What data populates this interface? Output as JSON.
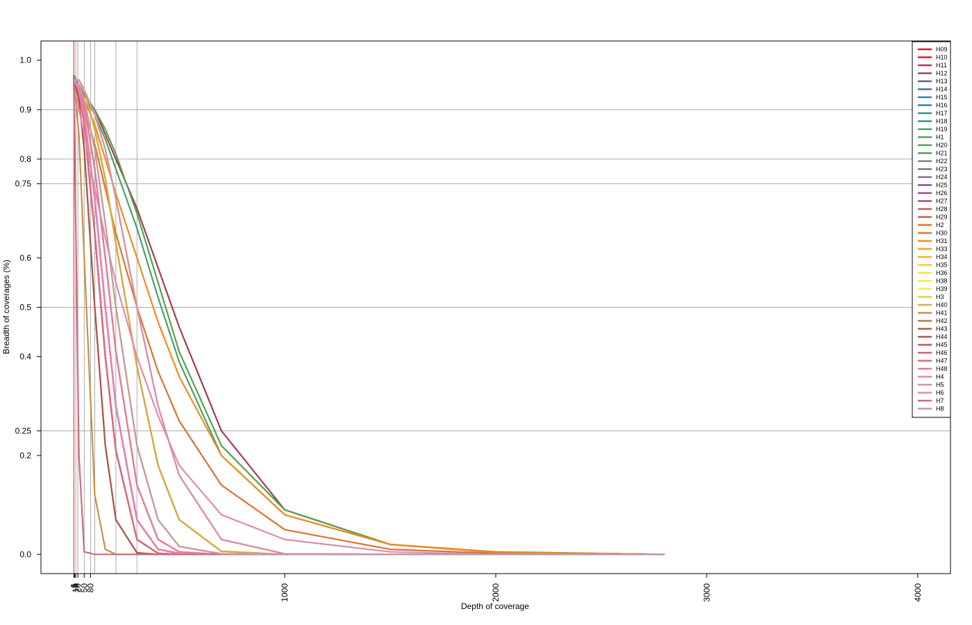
{
  "chart_data": {
    "type": "line",
    "x_label": "Depth of coverage",
    "y_label": "Breadth of coverages (%)",
    "x": [
      0,
      25,
      50,
      100,
      150,
      200,
      300,
      400,
      500,
      700,
      1000,
      1500,
      2000,
      2800
    ],
    "xlim": [
      -155,
      4155
    ],
    "ylim": [
      -0.039,
      1.039
    ],
    "xticks": [
      1,
      5,
      10,
      20,
      50,
      80,
      1000,
      2000,
      3000,
      4000
    ],
    "yticks": [
      {
        "value": 0,
        "label": "0.0"
      },
      0.2,
      0.25,
      0.4,
      0.5,
      0.6,
      0.75,
      0.8,
      0.9,
      {
        "value": 1,
        "label": "1.0"
      }
    ],
    "hlines": [
      0.25,
      0.5,
      0.75,
      0.8,
      0.9
    ],
    "vlines": [
      1,
      10,
      20,
      50,
      80,
      100,
      200,
      300
    ],
    "vline_colors": [
      "#cc3333",
      "#aaaaaa",
      "#aaaaaa",
      "#aaaaaa",
      "#aaaaaa",
      "#aaaaaa",
      "#aaaaaa",
      "#aaaaaa"
    ],
    "legend": "top-right",
    "series": [
      {
        "name": "H09",
        "color": "#cc2229",
        "values": [
          0.96,
          0.94,
          0.87,
          0.65,
          0.4,
          0.21,
          0.03,
          0.002,
          0,
          0,
          0,
          0,
          0,
          0
        ]
      },
      {
        "name": "H10",
        "color": "#c0283a",
        "values": [
          0.96,
          0.94,
          0.89,
          0.72,
          0.5,
          0.3,
          0.07,
          0.01,
          0.002,
          0,
          0,
          0,
          0,
          0
        ]
      },
      {
        "name": "H11",
        "color": "#a63a50",
        "values": [
          0.97,
          0.95,
          0.93,
          0.9,
          0.85,
          0.8,
          0.7,
          0.58,
          0.46,
          0.25,
          0.09,
          0.02,
          0.004,
          0
        ]
      },
      {
        "name": "H12",
        "color": "#8b4d6a",
        "values": [
          0.96,
          0.95,
          0.94,
          0.86,
          0.76,
          0.63,
          0.38,
          0.18,
          0.07,
          0.006,
          0,
          0,
          0,
          0
        ]
      },
      {
        "name": "H13",
        "color": "#6e5a8a",
        "values": [
          0.96,
          0.95,
          0.92,
          0.82,
          0.67,
          0.5,
          0.22,
          0.07,
          0.016,
          0.001,
          0,
          0,
          0,
          0
        ]
      },
      {
        "name": "H14",
        "color": "#4f6ea3",
        "values": [
          0.96,
          0.95,
          0.91,
          0.78,
          0.6,
          0.41,
          0.14,
          0.03,
          0.005,
          0,
          0,
          0,
          0,
          0
        ]
      },
      {
        "name": "H15",
        "color": "#3a7fb0",
        "values": [
          0.96,
          0.95,
          0.91,
          0.78,
          0.6,
          0.41,
          0.14,
          0.03,
          0.005,
          0,
          0,
          0,
          0,
          0
        ]
      },
      {
        "name": "H16",
        "color": "#2f86a0",
        "values": [
          0.96,
          0.94,
          0.89,
          0.72,
          0.5,
          0.3,
          0.07,
          0.01,
          0.002,
          0,
          0,
          0,
          0,
          0
        ]
      },
      {
        "name": "H17",
        "color": "#358f8a",
        "values": [
          0.96,
          0.94,
          0.87,
          0.65,
          0.4,
          0.21,
          0.03,
          0.002,
          0,
          0,
          0,
          0,
          0,
          0
        ]
      },
      {
        "name": "H18",
        "color": "#3d9478",
        "values": [
          0.96,
          0.94,
          0.89,
          0.72,
          0.5,
          0.3,
          0.07,
          0.01,
          0.002,
          0,
          0,
          0,
          0,
          0
        ]
      },
      {
        "name": "H19",
        "color": "#47a06b",
        "values": [
          0.97,
          0.95,
          0.93,
          0.89,
          0.84,
          0.78,
          0.66,
          0.52,
          0.39,
          0.2,
          0.08,
          0.02,
          0.004,
          0
        ]
      },
      {
        "name": "H1",
        "color": "#4ea05f",
        "values": [
          0.96,
          0.94,
          0.89,
          0.72,
          0.5,
          0.3,
          0.07,
          0.01,
          0.002,
          0,
          0,
          0,
          0,
          0
        ]
      },
      {
        "name": "H20",
        "color": "#55a052",
        "values": [
          0.97,
          0.95,
          0.93,
          0.9,
          0.86,
          0.81,
          0.69,
          0.55,
          0.41,
          0.22,
          0.09,
          0.02,
          0.005,
          0
        ]
      },
      {
        "name": "H21",
        "color": "#5e9656",
        "values": [
          0.96,
          0.94,
          0.87,
          0.65,
          0.4,
          0.21,
          0.03,
          0.002,
          0,
          0,
          0,
          0,
          0,
          0
        ]
      },
      {
        "name": "H22",
        "color": "#6f8a6a",
        "values": [
          0.96,
          0.92,
          0.82,
          0.5,
          0.22,
          0.07,
          0.003,
          0,
          0,
          0,
          0,
          0,
          0,
          0
        ]
      },
      {
        "name": "H23",
        "color": "#787878",
        "values": [
          0.96,
          0.94,
          0.89,
          0.72,
          0.5,
          0.3,
          0.07,
          0.01,
          0.002,
          0,
          0,
          0,
          0,
          0
        ]
      },
      {
        "name": "H24",
        "color": "#8a6a90",
        "values": [
          0.96,
          0.96,
          0.94,
          0.89,
          0.82,
          0.72,
          0.5,
          0.3,
          0.16,
          0.03,
          0.001,
          0,
          0,
          0
        ]
      },
      {
        "name": "H25",
        "color": "#8c4f9a",
        "values": [
          0.96,
          0.95,
          0.94,
          0.86,
          0.76,
          0.63,
          0.38,
          0.18,
          0.07,
          0.006,
          0,
          0,
          0,
          0
        ]
      },
      {
        "name": "H26",
        "color": "#9e4a8a",
        "values": [
          0.96,
          0.94,
          0.89,
          0.72,
          0.5,
          0.3,
          0.07,
          0.01,
          0.002,
          0,
          0,
          0,
          0,
          0
        ]
      },
      {
        "name": "H27",
        "color": "#b04a70",
        "values": [
          0.96,
          0.94,
          0.87,
          0.65,
          0.4,
          0.21,
          0.03,
          0.002,
          0,
          0,
          0,
          0,
          0,
          0
        ]
      },
      {
        "name": "H28",
        "color": "#c05a5a",
        "values": [
          0.96,
          0.94,
          0.89,
          0.72,
          0.5,
          0.3,
          0.07,
          0.01,
          0.002,
          0,
          0,
          0,
          0,
          0
        ]
      },
      {
        "name": "H29",
        "color": "#cc6040",
        "values": [
          0.96,
          0.94,
          0.87,
          0.65,
          0.4,
          0.21,
          0.03,
          0.002,
          0,
          0,
          0,
          0,
          0,
          0
        ]
      },
      {
        "name": "H2",
        "color": "#e0702a",
        "values": [
          0.96,
          0.93,
          0.9,
          0.83,
          0.74,
          0.65,
          0.5,
          0.37,
          0.27,
          0.14,
          0.05,
          0.01,
          0.002,
          0
        ]
      },
      {
        "name": "H30",
        "color": "#eb7a20",
        "values": [
          0.96,
          0.95,
          0.91,
          0.78,
          0.6,
          0.41,
          0.14,
          0.03,
          0.005,
          0,
          0,
          0,
          0,
          0
        ]
      },
      {
        "name": "H31",
        "color": "#f48a1a",
        "values": [
          0.96,
          0.94,
          0.92,
          0.87,
          0.8,
          0.73,
          0.6,
          0.47,
          0.36,
          0.2,
          0.08,
          0.02,
          0.004,
          0
        ]
      },
      {
        "name": "H33",
        "color": "#f7a020",
        "values": [
          0.96,
          0.96,
          0.94,
          0.89,
          0.82,
          0.72,
          0.5,
          0.3,
          0.16,
          0.03,
          0.001,
          0,
          0,
          0
        ]
      },
      {
        "name": "H34",
        "color": "#fab02a",
        "values": [
          0.96,
          0.95,
          0.92,
          0.82,
          0.67,
          0.5,
          0.22,
          0.07,
          0.016,
          0.001,
          0,
          0,
          0,
          0
        ]
      },
      {
        "name": "H35",
        "color": "#fcc830",
        "values": [
          0.96,
          0.95,
          0.92,
          0.82,
          0.67,
          0.5,
          0.22,
          0.07,
          0.016,
          0.001,
          0,
          0,
          0,
          0
        ]
      },
      {
        "name": "H36",
        "color": "#fde040",
        "values": [
          0.96,
          0.95,
          0.91,
          0.78,
          0.6,
          0.41,
          0.14,
          0.03,
          0.005,
          0,
          0,
          0,
          0,
          0
        ]
      },
      {
        "name": "H38",
        "color": "#fce840",
        "values": [
          0.96,
          0.95,
          0.92,
          0.82,
          0.67,
          0.5,
          0.22,
          0.07,
          0.016,
          0.001,
          0,
          0,
          0,
          0
        ]
      },
      {
        "name": "H39",
        "color": "#f8ec40",
        "values": [
          0.96,
          0.95,
          0.91,
          0.78,
          0.6,
          0.41,
          0.14,
          0.03,
          0.005,
          0,
          0,
          0,
          0,
          0
        ]
      },
      {
        "name": "H3",
        "color": "#e8c840",
        "values": [
          0.96,
          0.95,
          0.94,
          0.86,
          0.76,
          0.63,
          0.38,
          0.18,
          0.07,
          0.006,
          0,
          0,
          0,
          0
        ]
      },
      {
        "name": "H40",
        "color": "#d8ab40",
        "values": [
          0.96,
          0.95,
          0.94,
          0.86,
          0.76,
          0.63,
          0.38,
          0.18,
          0.07,
          0.006,
          0,
          0,
          0,
          0
        ]
      },
      {
        "name": "H41",
        "color": "#c89040",
        "values": [
          0.96,
          0.85,
          0.6,
          0.12,
          0.01,
          0,
          0,
          0,
          0,
          0,
          0,
          0,
          0,
          0
        ]
      },
      {
        "name": "H42",
        "color": "#b87a40",
        "values": [
          0.96,
          0.94,
          0.87,
          0.65,
          0.4,
          0.21,
          0.03,
          0.002,
          0,
          0,
          0,
          0,
          0,
          0
        ]
      },
      {
        "name": "H43",
        "color": "#a86040",
        "values": [
          0.96,
          0.94,
          0.89,
          0.72,
          0.5,
          0.3,
          0.07,
          0.01,
          0.002,
          0,
          0,
          0,
          0,
          0
        ]
      },
      {
        "name": "H44",
        "color": "#b05548",
        "values": [
          0.96,
          0.92,
          0.82,
          0.5,
          0.22,
          0.07,
          0.003,
          0,
          0,
          0,
          0,
          0,
          0,
          0
        ]
      },
      {
        "name": "H45",
        "color": "#c05858",
        "values": [
          0.96,
          0.94,
          0.87,
          0.65,
          0.4,
          0.21,
          0.03,
          0.002,
          0,
          0,
          0,
          0,
          0,
          0
        ]
      },
      {
        "name": "H46",
        "color": "#d06068",
        "values": [
          0.96,
          0.94,
          0.89,
          0.72,
          0.5,
          0.3,
          0.07,
          0.01,
          0.002,
          0,
          0,
          0,
          0,
          0
        ]
      },
      {
        "name": "H47",
        "color": "#e06a80",
        "values": [
          0.96,
          0.94,
          0.87,
          0.65,
          0.4,
          0.21,
          0.03,
          0.002,
          0,
          0,
          0,
          0,
          0,
          0
        ]
      },
      {
        "name": "H48",
        "color": "#e874a0",
        "values": [
          0.96,
          0.95,
          0.91,
          0.78,
          0.6,
          0.41,
          0.14,
          0.03,
          0.005,
          0,
          0,
          0,
          0,
          0
        ]
      },
      {
        "name": "H4",
        "color": "#ee80b8",
        "values": [
          0.96,
          0.94,
          0.89,
          0.72,
          0.5,
          0.3,
          0.07,
          0.01,
          0.002,
          0,
          0,
          0,
          0,
          0
        ]
      },
      {
        "name": "H5",
        "color": "#e08ab0",
        "values": [
          0.95,
          0.9,
          0.85,
          0.74,
          0.64,
          0.55,
          0.4,
          0.28,
          0.18,
          0.08,
          0.03,
          0.005,
          0,
          0
        ]
      },
      {
        "name": "H6",
        "color": "#d890b0",
        "values": [
          0.96,
          0.96,
          0.94,
          0.89,
          0.82,
          0.72,
          0.5,
          0.3,
          0.16,
          0.03,
          0.001,
          0,
          0,
          0
        ]
      },
      {
        "name": "H7",
        "color": "#cc6a80",
        "values": [
          0.97,
          0.2,
          0.005,
          0,
          0,
          0,
          0,
          0,
          0,
          0,
          0,
          0,
          0,
          0
        ]
      },
      {
        "name": "H8",
        "color": "#c09aa8",
        "values": [
          0.96,
          0.95,
          0.92,
          0.82,
          0.67,
          0.5,
          0.22,
          0.07,
          0.016,
          0.001,
          0,
          0,
          0,
          0
        ]
      }
    ]
  }
}
